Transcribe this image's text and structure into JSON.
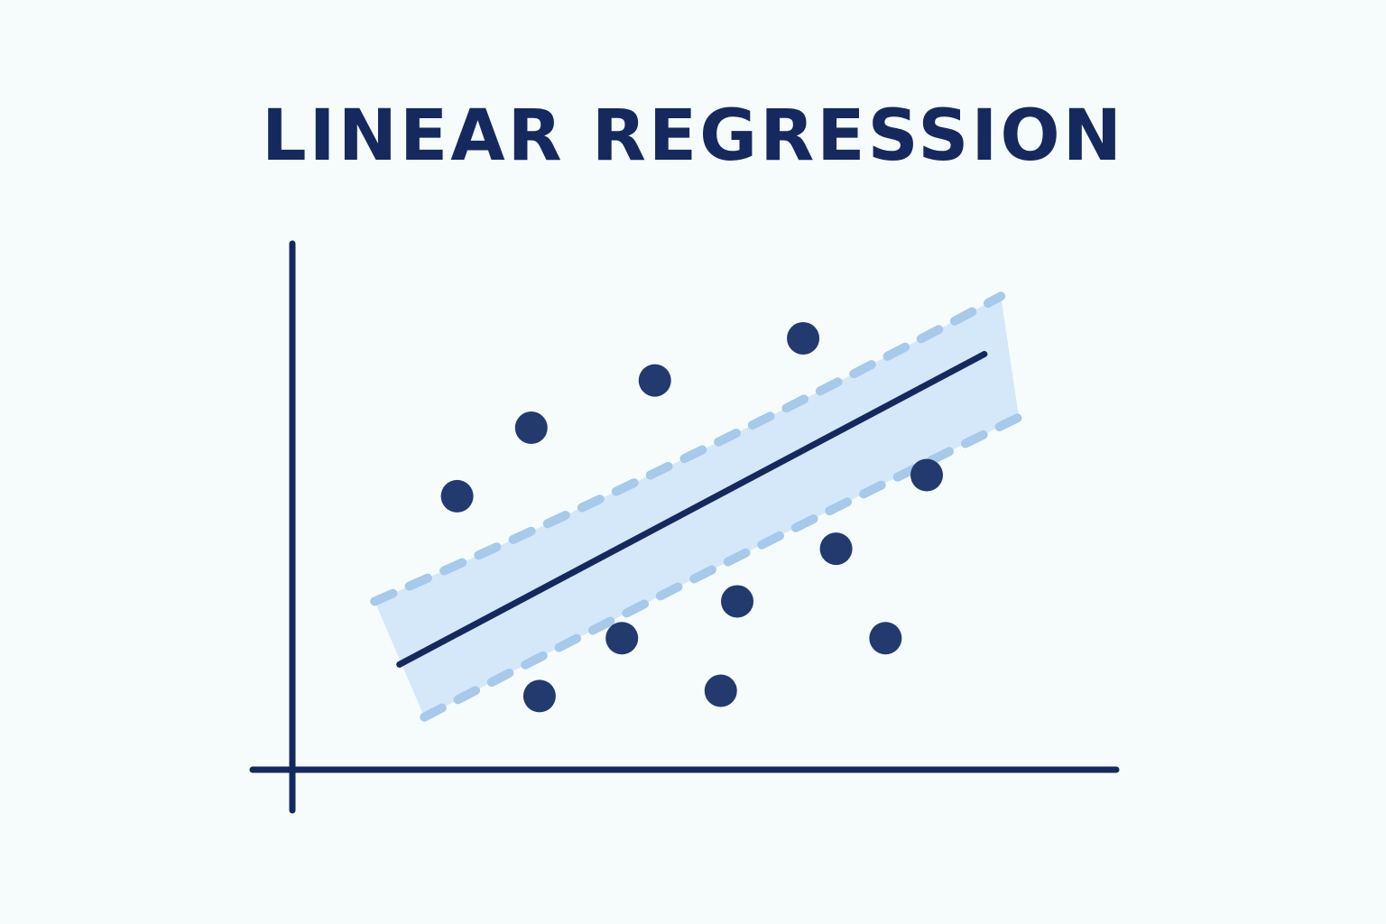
{
  "title": "LINEAR REGRESSION",
  "colors": {
    "background": "#f6fcfc",
    "ink": "#15295e",
    "band_fill": "#d4e8fa",
    "band_dash": "#a7c9ea",
    "point": "#233a6e"
  },
  "chart_data": {
    "type": "scatter",
    "title": "LINEAR REGRESSION",
    "xlabel": "",
    "ylabel": "",
    "xlim": [
      0,
      10
    ],
    "ylim": [
      0,
      10
    ],
    "grid": false,
    "legend": "none",
    "axis_ticks": false,
    "points": [
      {
        "x": 2.0,
        "y": 5.2
      },
      {
        "x": 2.9,
        "y": 6.5
      },
      {
        "x": 4.4,
        "y": 7.4
      },
      {
        "x": 6.2,
        "y": 8.2
      },
      {
        "x": 7.7,
        "y": 5.6
      },
      {
        "x": 6.6,
        "y": 4.2
      },
      {
        "x": 5.4,
        "y": 3.2
      },
      {
        "x": 4.0,
        "y": 2.5
      },
      {
        "x": 7.2,
        "y": 2.5
      },
      {
        "x": 3.0,
        "y": 1.4
      },
      {
        "x": 5.2,
        "y": 1.5
      }
    ],
    "regression_line": {
      "x": [
        1.3,
        8.4
      ],
      "y": [
        2.0,
        7.9
      ]
    },
    "confidence_band": {
      "x": [
        1.0,
        8.6
      ],
      "upper": [
        3.2,
        9.0
      ],
      "lower": [
        1.0,
        6.7
      ]
    }
  }
}
